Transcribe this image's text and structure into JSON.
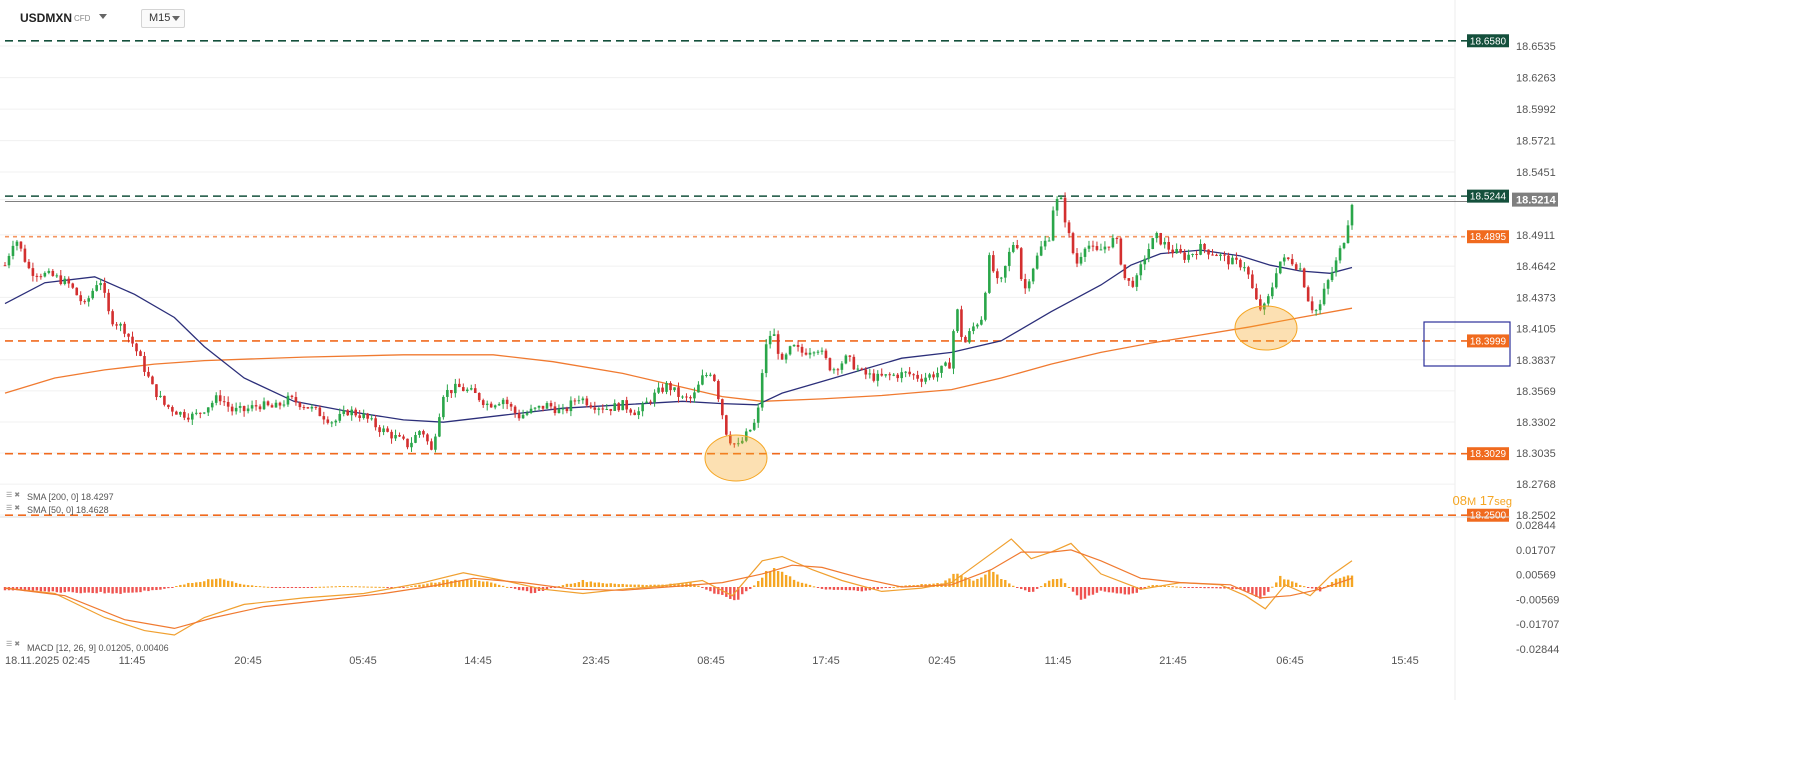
{
  "header": {
    "symbol": "USDMXN",
    "symbol_type": "CFD",
    "timeframe": "M15"
  },
  "chart_data": [
    {
      "type": "candlestick",
      "instrument": "USDMXN",
      "timeframe": "M15",
      "ylim": [
        18.2502,
        18.67
      ],
      "y_ticks": [
        "18.6535",
        "18.6263",
        "18.5992",
        "18.5721",
        "18.5451",
        "18.5214",
        "18.4911",
        "18.4642",
        "18.4373",
        "18.4105",
        "18.3837",
        "18.3569",
        "18.3302",
        "18.3035",
        "18.2768",
        "18.2502"
      ],
      "x_ticks": [
        "18.11.2025  02:45",
        "11:45",
        "20:45",
        "05:45",
        "14:45",
        "23:45",
        "08:45",
        "17:45",
        "02:45",
        "11:45",
        "21:45",
        "06:45",
        "15:45"
      ],
      "current_price": "18.5214",
      "horizontal_levels": [
        {
          "value": 18.658,
          "label": "18.6580",
          "color": "#14503c"
        },
        {
          "value": 18.5244,
          "label": "18.5244",
          "color": "#14503c"
        },
        {
          "value": 18.4895,
          "label": "18.4895",
          "color": "#f06a1e"
        },
        {
          "value": 18.3999,
          "label": "18.3999",
          "color": "#f06a1e"
        },
        {
          "value": 18.3029,
          "label": "18.3029",
          "color": "#f06a1e"
        },
        {
          "value": 18.25,
          "label": "18.2500",
          "color": "#f06a1e"
        }
      ],
      "close_path": [
        [
          0,
          18.465
        ],
        [
          10,
          18.49
        ],
        [
          25,
          18.46
        ],
        [
          50,
          18.455
        ],
        [
          65,
          18.448
        ],
        [
          80,
          18.43
        ],
        [
          95,
          18.455
        ],
        [
          105,
          18.42
        ],
        [
          120,
          18.41
        ],
        [
          130,
          18.395
        ],
        [
          138,
          18.38
        ],
        [
          148,
          18.36
        ],
        [
          160,
          18.345
        ],
        [
          175,
          18.338
        ],
        [
          190,
          18.335
        ],
        [
          205,
          18.345
        ],
        [
          215,
          18.352
        ],
        [
          228,
          18.34
        ],
        [
          240,
          18.34
        ],
        [
          255,
          18.345
        ],
        [
          270,
          18.342
        ],
        [
          285,
          18.35
        ],
        [
          300,
          18.345
        ],
        [
          315,
          18.338
        ],
        [
          330,
          18.33
        ],
        [
          345,
          18.34
        ],
        [
          360,
          18.335
        ],
        [
          375,
          18.325
        ],
        [
          390,
          18.318
        ],
        [
          405,
          18.31
        ],
        [
          418,
          18.325
        ],
        [
          428,
          18.305
        ],
        [
          440,
          18.355
        ],
        [
          455,
          18.36
        ],
        [
          470,
          18.355
        ],
        [
          485,
          18.345
        ],
        [
          500,
          18.35
        ],
        [
          515,
          18.335
        ],
        [
          530,
          18.34
        ],
        [
          545,
          18.345
        ],
        [
          560,
          18.338
        ],
        [
          575,
          18.352
        ],
        [
          590,
          18.345
        ],
        [
          605,
          18.342
        ],
        [
          620,
          18.345
        ],
        [
          635,
          18.338
        ],
        [
          650,
          18.352
        ],
        [
          665,
          18.362
        ],
        [
          680,
          18.35
        ],
        [
          690,
          18.35
        ],
        [
          700,
          18.368
        ],
        [
          710,
          18.375
        ],
        [
          718,
          18.345
        ],
        [
          725,
          18.318
        ],
        [
          735,
          18.308
        ],
        [
          745,
          18.32
        ],
        [
          755,
          18.332
        ],
        [
          762,
          18.39
        ],
        [
          770,
          18.41
        ],
        [
          780,
          18.38
        ],
        [
          790,
          18.395
        ],
        [
          800,
          18.39
        ],
        [
          815,
          18.395
        ],
        [
          830,
          18.375
        ],
        [
          845,
          18.385
        ],
        [
          860,
          18.372
        ],
        [
          875,
          18.368
        ],
        [
          890,
          18.37
        ],
        [
          905,
          18.372
        ],
        [
          920,
          18.368
        ],
        [
          935,
          18.372
        ],
        [
          948,
          18.38
        ],
        [
          955,
          18.43
        ],
        [
          962,
          18.395
        ],
        [
          970,
          18.41
        ],
        [
          980,
          18.42
        ],
        [
          988,
          18.47
        ],
        [
          998,
          18.445
        ],
        [
          1008,
          18.475
        ],
        [
          1015,
          18.49
        ],
        [
          1022,
          18.44
        ],
        [
          1030,
          18.46
        ],
        [
          1040,
          18.48
        ],
        [
          1048,
          18.49
        ],
        [
          1053,
          18.52
        ],
        [
          1060,
          18.52
        ],
        [
          1068,
          18.49
        ],
        [
          1075,
          18.465
        ],
        [
          1085,
          18.485
        ],
        [
          1095,
          18.475
        ],
        [
          1105,
          18.482
        ],
        [
          1115,
          18.488
        ],
        [
          1125,
          18.45
        ],
        [
          1135,
          18.45
        ],
        [
          1145,
          18.475
        ],
        [
          1155,
          18.49
        ],
        [
          1170,
          18.478
        ],
        [
          1185,
          18.472
        ],
        [
          1200,
          18.48
        ],
        [
          1215,
          18.475
        ],
        [
          1230,
          18.468
        ],
        [
          1245,
          18.465
        ],
        [
          1255,
          18.435
        ],
        [
          1262,
          18.425
        ],
        [
          1270,
          18.44
        ],
        [
          1278,
          18.468
        ],
        [
          1290,
          18.47
        ],
        [
          1300,
          18.462
        ],
        [
          1310,
          18.43
        ],
        [
          1318,
          18.425
        ],
        [
          1325,
          18.445
        ],
        [
          1335,
          18.465
        ],
        [
          1345,
          18.49
        ],
        [
          1352,
          18.52
        ]
      ],
      "sma200_path": [
        [
          0,
          18.355
        ],
        [
          50,
          18.368
        ],
        [
          100,
          18.375
        ],
        [
          150,
          18.38
        ],
        [
          200,
          18.383
        ],
        [
          300,
          18.386
        ],
        [
          400,
          18.388
        ],
        [
          490,
          18.388
        ],
        [
          550,
          18.382
        ],
        [
          620,
          18.372
        ],
        [
          680,
          18.36
        ],
        [
          720,
          18.352
        ],
        [
          760,
          18.348
        ],
        [
          820,
          18.35
        ],
        [
          880,
          18.353
        ],
        [
          950,
          18.358
        ],
        [
          1000,
          18.368
        ],
        [
          1050,
          18.38
        ],
        [
          1100,
          18.39
        ],
        [
          1150,
          18.398
        ],
        [
          1200,
          18.405
        ],
        [
          1250,
          18.412
        ],
        [
          1300,
          18.42
        ],
        [
          1352,
          18.428
        ]
      ],
      "sma50_path": [
        [
          0,
          18.432
        ],
        [
          40,
          18.45
        ],
        [
          90,
          18.455
        ],
        [
          130,
          18.44
        ],
        [
          170,
          18.42
        ],
        [
          200,
          18.395
        ],
        [
          240,
          18.368
        ],
        [
          290,
          18.348
        ],
        [
          340,
          18.34
        ],
        [
          400,
          18.332
        ],
        [
          440,
          18.33
        ],
        [
          500,
          18.336
        ],
        [
          560,
          18.342
        ],
        [
          620,
          18.345
        ],
        [
          680,
          18.348
        ],
        [
          720,
          18.346
        ],
        [
          755,
          18.345
        ],
        [
          780,
          18.355
        ],
        [
          820,
          18.365
        ],
        [
          860,
          18.375
        ],
        [
          900,
          18.385
        ],
        [
          950,
          18.39
        ],
        [
          1000,
          18.4
        ],
        [
          1050,
          18.425
        ],
        [
          1100,
          18.448
        ],
        [
          1130,
          18.465
        ],
        [
          1160,
          18.475
        ],
        [
          1200,
          18.478
        ],
        [
          1240,
          18.473
        ],
        [
          1270,
          18.465
        ],
        [
          1300,
          18.46
        ],
        [
          1330,
          18.458
        ],
        [
          1352,
          18.463
        ]
      ],
      "indicators": [
        {
          "label": "SMA [200, 0]",
          "value": "18.4297",
          "color": "#f07a30"
        },
        {
          "label": "SMA [50, 0]",
          "value": "18.4628",
          "color": "#2c2f7a"
        }
      ],
      "countdown": {
        "minutes": "08",
        "minutes_unit": "M",
        "seconds": "17",
        "seconds_unit": "seg"
      }
    },
    {
      "type": "histogram",
      "name": "MACD [12, 26, 9]",
      "legend": "MACD [12, 26, 9]  0.01205,  0.00406",
      "ylim": [
        -0.02844,
        0.02844
      ],
      "y_ticks": [
        "0.02844",
        "0.01707",
        "0.00569",
        "-0.00569",
        "-0.01707",
        "-0.02844"
      ],
      "hist_path": [
        [
          0,
          -0.0015
        ],
        [
          60,
          -0.0025
        ],
        [
          120,
          -0.003
        ],
        [
          160,
          -0.001
        ],
        [
          185,
          0.002
        ],
        [
          215,
          0.004
        ],
        [
          240,
          0.001
        ],
        [
          280,
          -0.0005
        ],
        [
          340,
          0.0005
        ],
        [
          400,
          -0.0002
        ],
        [
          440,
          0.003
        ],
        [
          470,
          0.004
        ],
        [
          500,
          0.0005
        ],
        [
          530,
          -0.003
        ],
        [
          560,
          0.001
        ],
        [
          580,
          0.003
        ],
        [
          610,
          0.0015
        ],
        [
          650,
          0.001
        ],
        [
          690,
          0.002
        ],
        [
          715,
          -0.004
        ],
        [
          735,
          -0.006
        ],
        [
          755,
          0.002
        ],
        [
          770,
          0.01
        ],
        [
          790,
          0.004
        ],
        [
          820,
          -0.001
        ],
        [
          860,
          -0.002
        ],
        [
          900,
          0.0005
        ],
        [
          940,
          0.002
        ],
        [
          955,
          0.007
        ],
        [
          970,
          0.003
        ],
        [
          990,
          0.0075
        ],
        [
          1010,
          0.001
        ],
        [
          1030,
          -0.003
        ],
        [
          1050,
          0.004
        ],
        [
          1060,
          0.004
        ],
        [
          1080,
          -0.006
        ],
        [
          1100,
          -0.002
        ],
        [
          1130,
          -0.004
        ],
        [
          1150,
          0.001
        ],
        [
          1200,
          -0.0005
        ],
        [
          1240,
          -0.001
        ],
        [
          1262,
          -0.006
        ],
        [
          1280,
          0.005
        ],
        [
          1300,
          0.001
        ],
        [
          1320,
          -0.002
        ],
        [
          1335,
          0.0035
        ],
        [
          1352,
          0.0065
        ]
      ],
      "macd_path": [
        [
          0,
          -0.0005
        ],
        [
          50,
          -0.003
        ],
        [
          100,
          -0.014
        ],
        [
          140,
          -0.02
        ],
        [
          170,
          -0.022
        ],
        [
          200,
          -0.014
        ],
        [
          240,
          -0.008
        ],
        [
          300,
          -0.005
        ],
        [
          360,
          -0.003
        ],
        [
          420,
          0.002
        ],
        [
          460,
          0.0065
        ],
        [
          500,
          0.003
        ],
        [
          540,
          -0.001
        ],
        [
          580,
          -0.003
        ],
        [
          620,
          -0.001
        ],
        [
          660,
          0.0005
        ],
        [
          700,
          0.003
        ],
        [
          730,
          -0.004
        ],
        [
          760,
          0.012
        ],
        [
          780,
          0.014
        ],
        [
          810,
          0.008
        ],
        [
          840,
          0.003
        ],
        [
          880,
          -0.002
        ],
        [
          920,
          -0.0005
        ],
        [
          950,
          0.002
        ],
        [
          980,
          0.012
        ],
        [
          1010,
          0.022
        ],
        [
          1030,
          0.013
        ],
        [
          1050,
          0.016
        ],
        [
          1070,
          0.02
        ],
        [
          1100,
          0.006
        ],
        [
          1140,
          -0.001
        ],
        [
          1180,
          0.002
        ],
        [
          1220,
          0.001
        ],
        [
          1245,
          -0.004
        ],
        [
          1265,
          -0.01
        ],
        [
          1285,
          0.001
        ],
        [
          1310,
          -0.004
        ],
        [
          1330,
          0.005
        ],
        [
          1352,
          0.012
        ]
      ],
      "signal_path": [
        [
          0,
          -0.0005
        ],
        [
          60,
          -0.004
        ],
        [
          120,
          -0.015
        ],
        [
          170,
          -0.019
        ],
        [
          210,
          -0.014
        ],
        [
          260,
          -0.009
        ],
        [
          320,
          -0.006
        ],
        [
          380,
          -0.003
        ],
        [
          430,
          0.0005
        ],
        [
          470,
          0.004
        ],
        [
          520,
          0.002
        ],
        [
          570,
          -0.001
        ],
        [
          620,
          -0.0015
        ],
        [
          680,
          0.0005
        ],
        [
          720,
          0.002
        ],
        [
          760,
          0.006
        ],
        [
          790,
          0.01
        ],
        [
          820,
          0.009
        ],
        [
          860,
          0.004
        ],
        [
          900,
          0.0
        ],
        [
          950,
          0.001
        ],
        [
          990,
          0.008
        ],
        [
          1020,
          0.016
        ],
        [
          1050,
          0.016
        ],
        [
          1070,
          0.017
        ],
        [
          1100,
          0.012
        ],
        [
          1140,
          0.004
        ],
        [
          1180,
          0.002
        ],
        [
          1230,
          0.001
        ],
        [
          1260,
          -0.005
        ],
        [
          1290,
          -0.004
        ],
        [
          1320,
          -0.001
        ],
        [
          1352,
          0.004
        ]
      ],
      "macd_color": "#f0a030",
      "signal_color": "#f07a30"
    }
  ]
}
